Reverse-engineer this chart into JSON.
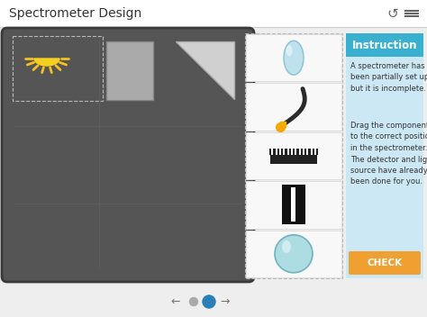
{
  "title": "Spectrometer Design",
  "bg_color": "#eeeeee",
  "header_color": "#ffffff",
  "main_area_color": "#555555",
  "main_area_inner_color": "#5a5a5a",
  "main_area_border": "#3a3a3a",
  "grid_color": "#666666",
  "instruction_header_color": "#3ab0d0",
  "instruction_bg": "#cce8f4",
  "instruction_title": "Instruction",
  "instruction_text_1": "A spectrometer has\nbeen partially set up\nbut it is incomplete.",
  "instruction_text_2": "Drag the components\nto the correct position\nin the spectrometer.\nThe detector and light\nsource have already\nbeen done for you.",
  "check_button_color": "#f0a030",
  "check_button_text": "CHECK",
  "sun_color": "#f5d020",
  "sun_ray_color": "#f5c020",
  "sun_body_color": "#f5e060",
  "component_box_color": "#f8f8f8",
  "component_box_border": "#cccccc",
  "slot_separator_color": "#dddddd",
  "lens1_color": "#b8e0ec",
  "lens1_edge": "#80bcd0",
  "lens2_color": "#a0d8e0",
  "lens2_edge": "#60aab8",
  "fiber_color": "#2a2a2a",
  "fiber_tip_color": "#f5a800",
  "grating_color": "#222222",
  "slit_color": "#111111",
  "slit_white": "#ffffff",
  "nav_dot_active_outer": "#2a7db5",
  "nav_dot_active_inner": "#2a7db5",
  "nav_dot_inactive": "#aaaaaa",
  "prism_color": "#d0d0d0",
  "prism_edge": "#aaaaaa",
  "rect_component_color": "#aaaaaa",
  "rect_component_edge": "#888888",
  "dashed_box_color": "#bbbbbb"
}
